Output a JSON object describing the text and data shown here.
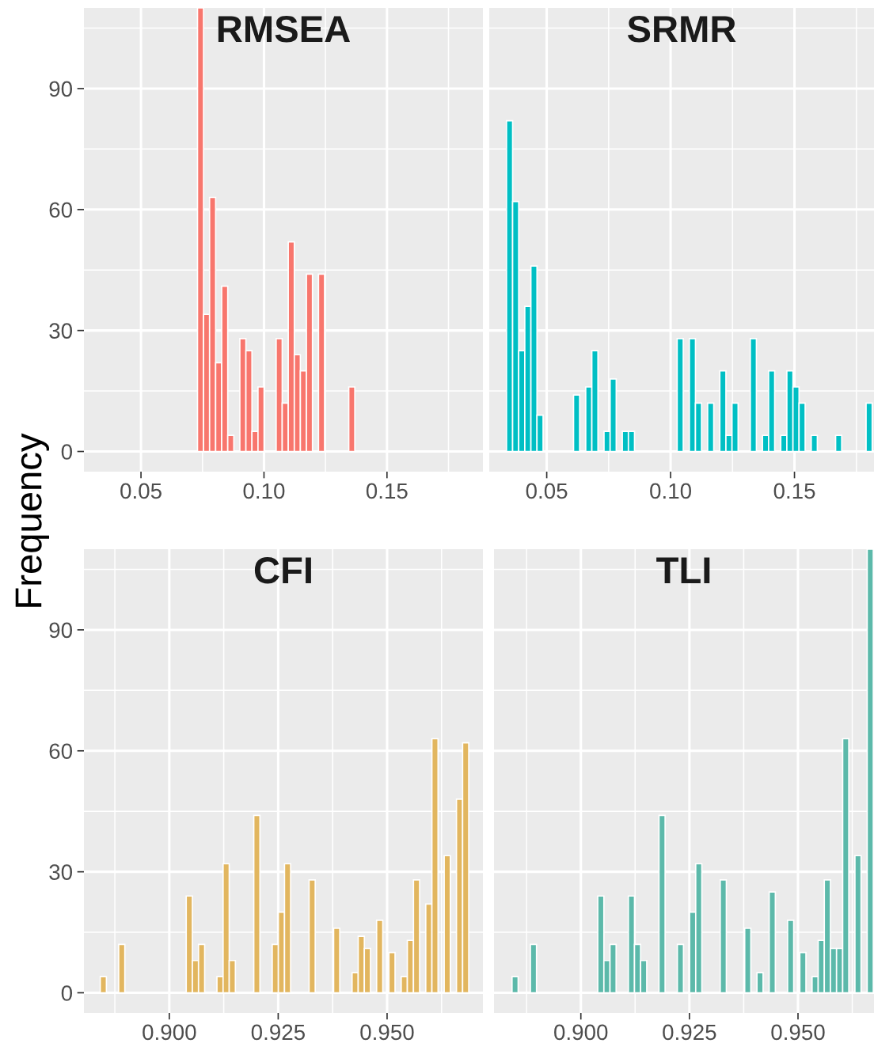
{
  "chart_data": [
    {
      "type": "histogram",
      "title": "RMSEA",
      "ylabel": "Frequency",
      "color": "#f8766d",
      "bins": [
        0.07297,
        0.07543,
        0.07789,
        0.08035,
        0.08281,
        0.08527,
        0.08773,
        0.09019,
        0.09265,
        0.09511,
        0.09757,
        0.10003,
        0.10249,
        0.10495,
        0.10741,
        0.10987,
        0.11233,
        0.11479,
        0.11725,
        0.11971,
        0.12217,
        0.12463,
        0.12709,
        0.12955,
        0.13201,
        0.13447,
        0.13693
      ],
      "values": [
        110,
        34,
        63,
        22,
        41,
        4,
        0,
        28,
        25,
        5,
        16,
        0,
        0,
        28,
        12,
        52,
        24,
        20,
        44,
        0,
        44,
        0,
        0,
        0,
        0,
        16
      ],
      "xlim": [
        0.0268,
        0.189
      ],
      "xticks": [
        {
          "value": 0.05,
          "label": "0.05"
        },
        {
          "value": 0.075,
          "label": null
        },
        {
          "value": 0.1,
          "label": "0.10"
        },
        {
          "value": 0.125,
          "label": null
        },
        {
          "value": 0.15,
          "label": "0.15"
        },
        {
          "value": 0.175,
          "label": null
        }
      ],
      "ylim": [
        -5,
        110
      ],
      "yticks": [
        0,
        {
          "value": 15,
          "label": null
        },
        30,
        {
          "value": 45,
          "label": null
        },
        60,
        {
          "value": 75,
          "label": null
        },
        90,
        {
          "value": 105,
          "label": null
        }
      ],
      "grid": true
    },
    {
      "type": "histogram",
      "title": "SRMR",
      "color": "#00bfc4",
      "bins": [
        0.03377,
        0.03623,
        0.03869,
        0.04115,
        0.04361,
        0.04607,
        0.04853,
        0.05099,
        0.05345,
        0.05591,
        0.05837,
        0.06083,
        0.06329,
        0.06575,
        0.06821,
        0.07067,
        0.07313,
        0.07559,
        0.07805,
        0.08051,
        0.08297,
        0.08543,
        0.08789,
        0.09035,
        0.09281,
        0.09527,
        0.09773,
        0.10019,
        0.10265,
        0.10511,
        0.10757,
        0.11003,
        0.11249,
        0.11495,
        0.11741,
        0.11987,
        0.12233,
        0.12479,
        0.12725,
        0.12971,
        0.13217,
        0.13463,
        0.13709,
        0.13955,
        0.14201,
        0.14447,
        0.14693,
        0.14939,
        0.15185,
        0.15431,
        0.15677,
        0.15923,
        0.16169,
        0.16415,
        0.16661,
        0.16907,
        0.17153,
        0.17399,
        0.17645,
        0.17891,
        0.18137
      ],
      "values": [
        82,
        62,
        25,
        36,
        46,
        9,
        0,
        0,
        0,
        0,
        0,
        14,
        0,
        16,
        25,
        0,
        5,
        18,
        0,
        5,
        5,
        0,
        0,
        0,
        0,
        0,
        0,
        0,
        28,
        0,
        28,
        12,
        0,
        12,
        0,
        20,
        4,
        12,
        0,
        0,
        28,
        0,
        4,
        20,
        0,
        4,
        20,
        16,
        12,
        0,
        4,
        0,
        0,
        0,
        4,
        0,
        0,
        0,
        0,
        12
      ],
      "xlim": [
        0.0268,
        0.1821
      ],
      "xticks": [
        {
          "value": 0.05,
          "label": "0.05"
        },
        {
          "value": 0.075,
          "label": null
        },
        {
          "value": 0.1,
          "label": "0.10"
        },
        {
          "value": 0.125,
          "label": null
        },
        {
          "value": 0.15,
          "label": "0.15"
        },
        {
          "value": 0.175,
          "label": null
        }
      ],
      "ylim": [
        -5,
        110
      ],
      "yticks": [
        0,
        {
          "value": 15,
          "label": null
        },
        30,
        {
          "value": 45,
          "label": null
        },
        60,
        {
          "value": 75,
          "label": null
        },
        90,
        {
          "value": 105,
          "label": null
        }
      ],
      "grid": true,
      "tick_labels": "x"
    },
    {
      "type": "histogram",
      "title": "CFI",
      "color": "#e2b65f",
      "bins": [
        0.88415,
        0.88556,
        0.88697,
        0.88838,
        0.88979,
        0.8912,
        0.89261,
        0.89402,
        0.89543,
        0.89684,
        0.89825,
        0.89966,
        0.90107,
        0.90248,
        0.90389,
        0.9053,
        0.90671,
        0.90812,
        0.90953,
        0.91094,
        0.91235,
        0.91376,
        0.91517,
        0.91658,
        0.91799,
        0.9194,
        0.92081,
        0.92222,
        0.92363,
        0.92504,
        0.92645,
        0.92786,
        0.92927,
        0.93068,
        0.93209,
        0.9335,
        0.93491,
        0.93632,
        0.93773,
        0.93914,
        0.94055,
        0.94196,
        0.94337,
        0.94478,
        0.94619,
        0.9476,
        0.94901,
        0.95042,
        0.95183,
        0.95324,
        0.95465,
        0.95606,
        0.95747,
        0.95888,
        0.96029,
        0.9617,
        0.96311,
        0.96452,
        0.96593,
        0.96734,
        0.96875
      ],
      "values": [
        4,
        0,
        0,
        12,
        0,
        0,
        0,
        0,
        0,
        0,
        0,
        0,
        0,
        0,
        24,
        8,
        12,
        0,
        0,
        4,
        32,
        8,
        0,
        0,
        0,
        44,
        0,
        0,
        12,
        20,
        32,
        0,
        0,
        0,
        28,
        0,
        0,
        0,
        16,
        0,
        0,
        5,
        14,
        11,
        0,
        18,
        0,
        10,
        0,
        4,
        13,
        28,
        0,
        22,
        63,
        0,
        34,
        0,
        48,
        62
      ],
      "xlim": [
        0.8804,
        0.972
      ],
      "xticks": [
        {
          "value": 0.8875,
          "label": null
        },
        {
          "value": 0.9,
          "label": "0.900"
        },
        {
          "value": 0.9125,
          "label": null
        },
        {
          "value": 0.925,
          "label": "0.925"
        },
        {
          "value": 0.9375,
          "label": null
        },
        {
          "value": 0.95,
          "label": "0.950"
        },
        {
          "value": 0.9625,
          "label": null
        }
      ],
      "ylim": [
        -5,
        110
      ],
      "yticks": [
        0,
        {
          "value": 15,
          "label": null
        },
        30,
        {
          "value": 45,
          "label": null
        },
        60,
        {
          "value": 75,
          "label": null
        },
        90,
        {
          "value": 105,
          "label": null
        }
      ],
      "grid": true
    },
    {
      "type": "histogram",
      "title": "TLI",
      "color": "#5cb9aa",
      "bins": [
        0.88415,
        0.88556,
        0.88697,
        0.88838,
        0.88979,
        0.8912,
        0.89261,
        0.89402,
        0.89543,
        0.89684,
        0.89825,
        0.89966,
        0.90107,
        0.90248,
        0.90389,
        0.9053,
        0.90671,
        0.90812,
        0.90953,
        0.91094,
        0.91235,
        0.91376,
        0.91517,
        0.91658,
        0.91799,
        0.9194,
        0.92081,
        0.92222,
        0.92363,
        0.92504,
        0.92645,
        0.92786,
        0.92927,
        0.93068,
        0.93209,
        0.9335,
        0.93491,
        0.93632,
        0.93773,
        0.93914,
        0.94055,
        0.94196,
        0.94337,
        0.94478,
        0.94619,
        0.9476,
        0.94901,
        0.95042,
        0.95183,
        0.95324,
        0.95465,
        0.95606,
        0.95747,
        0.95888,
        0.96029,
        0.9617,
        0.96311,
        0.96452,
        0.96593,
        0.96734
      ],
      "values": [
        4,
        0,
        0,
        12,
        0,
        0,
        0,
        0,
        0,
        0,
        0,
        0,
        0,
        0,
        24,
        8,
        12,
        0,
        0,
        24,
        12,
        8,
        0,
        0,
        44,
        0,
        0,
        12,
        0,
        20,
        32,
        0,
        0,
        0,
        28,
        0,
        0,
        0,
        16,
        0,
        5,
        0,
        25,
        0,
        0,
        18,
        0,
        10,
        0,
        4,
        13,
        28,
        11,
        11,
        63,
        0,
        34,
        0,
        110
      ],
      "xlim": [
        0.88,
        0.9675
      ],
      "xticks": [
        {
          "value": 0.8875,
          "label": null
        },
        {
          "value": 0.9,
          "label": "0.900"
        },
        {
          "value": 0.9125,
          "label": null
        },
        {
          "value": 0.925,
          "label": "0.925"
        },
        {
          "value": 0.9375,
          "label": null
        },
        {
          "value": 0.95,
          "label": "0.950"
        },
        {
          "value": 0.9625,
          "label": null
        }
      ],
      "ylim": [
        -5,
        110
      ],
      "yticks": [
        0,
        {
          "value": 15,
          "label": null
        },
        30,
        {
          "value": 45,
          "label": null
        },
        60,
        {
          "value": 75,
          "label": null
        },
        90,
        {
          "value": 105,
          "label": null
        }
      ],
      "grid": true,
      "tick_labels": "x"
    }
  ]
}
